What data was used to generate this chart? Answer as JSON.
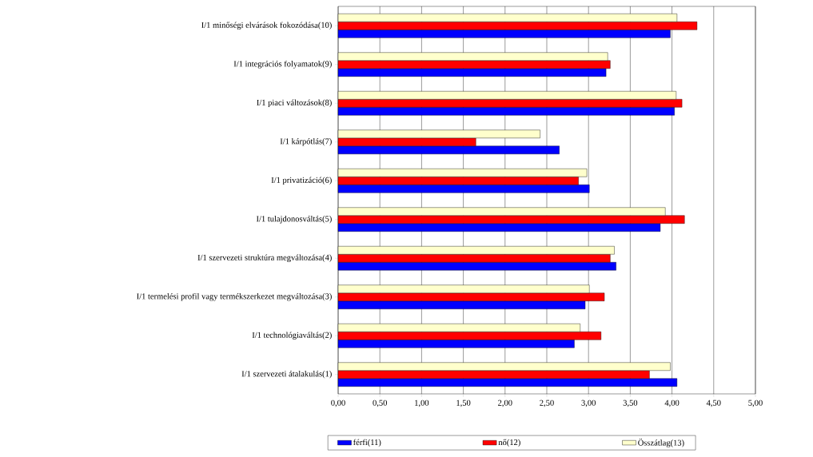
{
  "chart_data": {
    "type": "bar",
    "orientation": "horizontal",
    "categories": [
      "I/1 minőségi elvárások fokozódása(10)",
      "I/1 integrációs folyamatok(9)",
      "I/1 piaci változások(8)",
      "I/1 kárpótlás(7)",
      "I/1 privatizáció(6)",
      "I/1 tulajdonosváltás(5)",
      "I/1 szervezeti struktúra megváltozása(4)",
      "I/1 termelési profil vagy termékszerkezet megváltozása(3)",
      "I/1 technológiaváltás(2)",
      "I/1 szervezeti átalakulás(1)"
    ],
    "series": [
      {
        "name": "férfi(11)",
        "color": "#0000ff",
        "values": [
          3.98,
          3.21,
          4.03,
          2.65,
          3.01,
          3.86,
          3.33,
          2.96,
          2.83,
          4.06
        ]
      },
      {
        "name": "nő(12)",
        "color": "#ff0000",
        "values": [
          4.3,
          3.26,
          4.12,
          1.65,
          2.88,
          4.15,
          3.26,
          3.19,
          3.15,
          3.73
        ]
      },
      {
        "name": "Összátlag(13)",
        "color": "#ffffcc",
        "values": [
          4.06,
          3.23,
          4.05,
          2.42,
          2.98,
          3.92,
          3.31,
          3.01,
          2.9,
          3.98
        ]
      }
    ],
    "xlim": [
      0,
      5
    ],
    "xticks": [
      {
        "value": 0,
        "label": "0,00"
      },
      {
        "value": 0.5,
        "label": "0,50"
      },
      {
        "value": 1,
        "label": "1,00"
      },
      {
        "value": 1.5,
        "label": "1,50"
      },
      {
        "value": 2,
        "label": "2,00"
      },
      {
        "value": 2.5,
        "label": "2,50"
      },
      {
        "value": 3,
        "label": "3,00"
      },
      {
        "value": 3.5,
        "label": "3,50"
      },
      {
        "value": 4,
        "label": "4,00"
      },
      {
        "value": 4.5,
        "label": "4,50"
      },
      {
        "value": 5,
        "label": "5,00"
      }
    ],
    "grid": "x",
    "legend": "bottom"
  }
}
